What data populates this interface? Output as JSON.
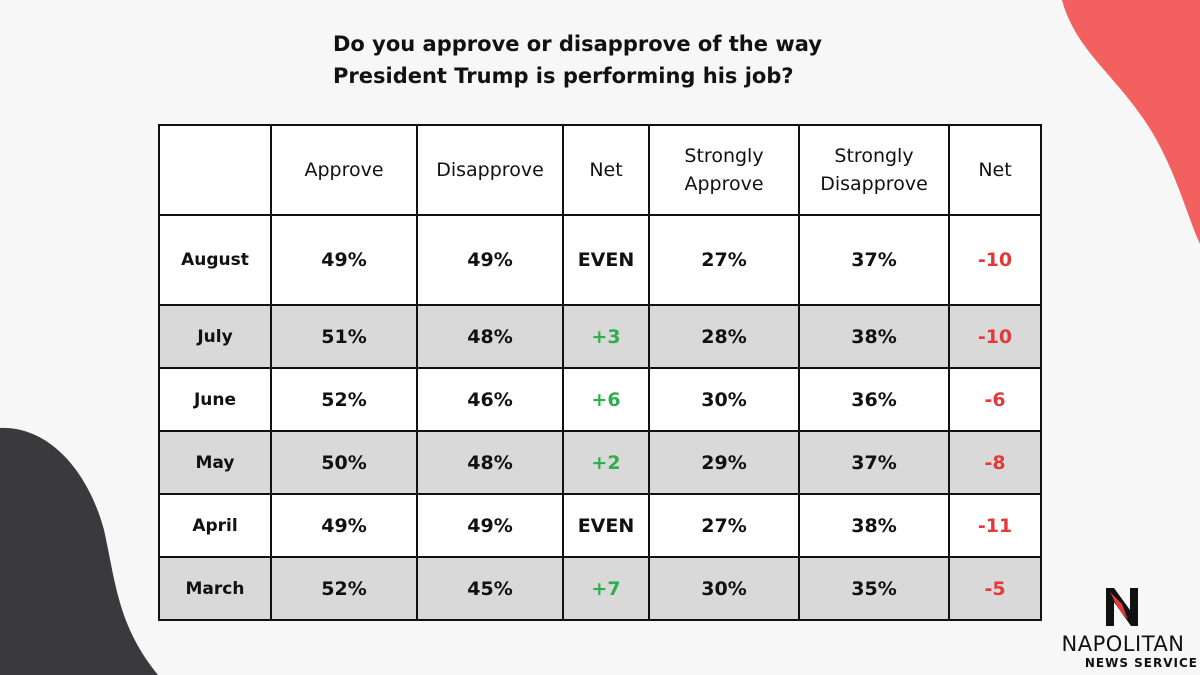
{
  "title_line1": "Do you approve or disapprove of the way",
  "title_line2": "President Trump is performing his job?",
  "colors": {
    "background": "#f7f7f7",
    "accent_blob": "#f2605f",
    "dark_blob": "#3a3a3c",
    "positive": "#2fae4e",
    "negative": "#e23a3a",
    "shaded_row": "#d9d9d9"
  },
  "chart_data": {
    "type": "table",
    "columns": [
      "",
      "Approve",
      "Disapprove",
      "Net",
      "Strongly Approve",
      "Strongly Disapprove",
      "Net"
    ],
    "rows": [
      {
        "month": "August",
        "approve": "49%",
        "disapprove": "49%",
        "net": "EVEN",
        "strongly_approve": "27%",
        "strongly_disapprove": "37%",
        "strong_net": "-10"
      },
      {
        "month": "July",
        "approve": "51%",
        "disapprove": "48%",
        "net": "+3",
        "strongly_approve": "28%",
        "strongly_disapprove": "38%",
        "strong_net": "-10"
      },
      {
        "month": "June",
        "approve": "52%",
        "disapprove": "46%",
        "net": "+6",
        "strongly_approve": "30%",
        "strongly_disapprove": "36%",
        "strong_net": "-6"
      },
      {
        "month": "May",
        "approve": "50%",
        "disapprove": "48%",
        "net": "+2",
        "strongly_approve": "29%",
        "strongly_disapprove": "37%",
        "strong_net": "-8"
      },
      {
        "month": "April",
        "approve": "49%",
        "disapprove": "49%",
        "net": "EVEN",
        "strongly_approve": "27%",
        "strongly_disapprove": "38%",
        "strong_net": "-11"
      },
      {
        "month": "March",
        "approve": "52%",
        "disapprove": "45%",
        "net": "+7",
        "strongly_approve": "30%",
        "strongly_disapprove": "35%",
        "strong_net": "-5"
      }
    ]
  },
  "logo": {
    "icon": "napolitan-n-logo-icon",
    "name": "NAPOLITAN",
    "subtitle": "NEWS SERVICE"
  }
}
